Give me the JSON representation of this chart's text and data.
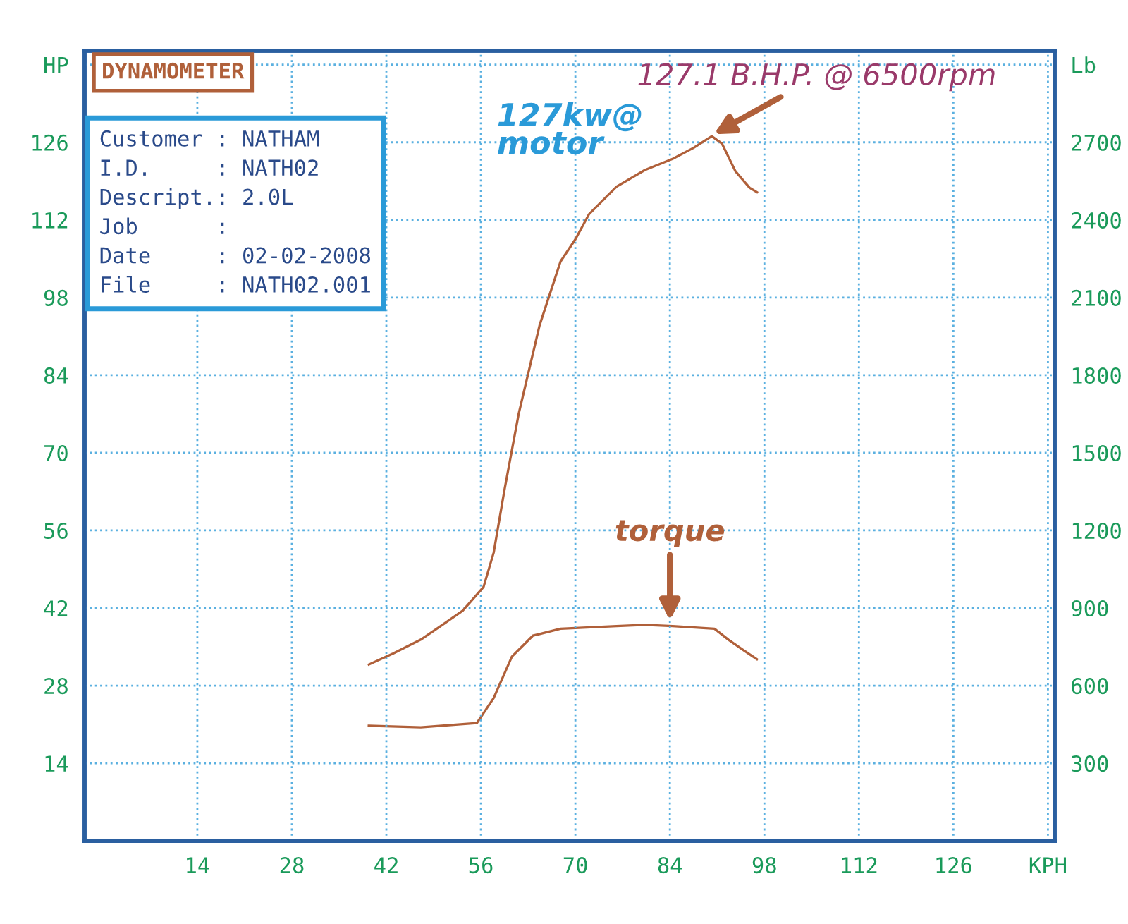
{
  "chart_data": {
    "type": "line",
    "title": "DYNAMOMETER",
    "annotations": [
      {
        "text": "127.1 B.H.P. @ 6500rpm",
        "x": 90,
        "y": 127.1
      },
      "127kw@\nmotor",
      {
        "text": "torque",
        "x": 84,
        "y": 39
      },
      "Customer : NATHAM",
      "I.D.     : NATH02",
      "Descript.: 2.0L",
      "Job      :",
      "Date     : 02-02-2008",
      "File     : NATH02.001"
    ],
    "series": [
      {
        "color": "#b0603a",
        "x": [
          39.4,
          43,
          47.1,
          50,
          53.3,
          56.4,
          57.9,
          59.5,
          61.6,
          64.7,
          67.8,
          70,
          72,
          76.1,
          80.3,
          84.4,
          87.5,
          90.2,
          91.7,
          93.7,
          95.8,
          96.9
        ],
        "values": [
          31.8,
          33.8,
          36.3,
          38.7,
          41.5,
          45.8,
          52,
          63.3,
          77,
          93,
          104.5,
          108.5,
          113,
          118,
          121,
          123,
          125,
          127.1,
          125.8,
          120.8,
          117.8,
          117
        ]
      },
      {
        "color": "#b0603a",
        "axis": "y2",
        "x": [
          39.4,
          47.1,
          55.4,
          57.9,
          60.6,
          63.7,
          67.8,
          76.1,
          80.3,
          84.4,
          90.6,
          92.7,
          94.8,
          96.9
        ],
        "values": [
          445,
          439,
          455,
          552,
          712,
          793,
          820,
          830,
          835,
          830,
          820,
          777,
          739,
          702
        ]
      }
    ],
    "xlim": [
      -2.7,
      141
    ],
    "xticks": [
      14,
      28,
      42,
      56,
      70,
      84,
      98,
      112,
      126,
      {
        "value": 140,
        "label": "KPH"
      }
    ],
    "ylim": [
      0,
      142.5
    ],
    "yticks": [
      14,
      28,
      42,
      56,
      70,
      84,
      98,
      112,
      126,
      {
        "value": 140,
        "label": "HP"
      }
    ],
    "y2lim": [
      0,
      3053.6
    ],
    "y2ticks": [
      300,
      600,
      900,
      1200,
      1500,
      1800,
      2100,
      2400,
      2700,
      {
        "value": 3000,
        "label": "Lb"
      }
    ],
    "grid": true
  }
}
